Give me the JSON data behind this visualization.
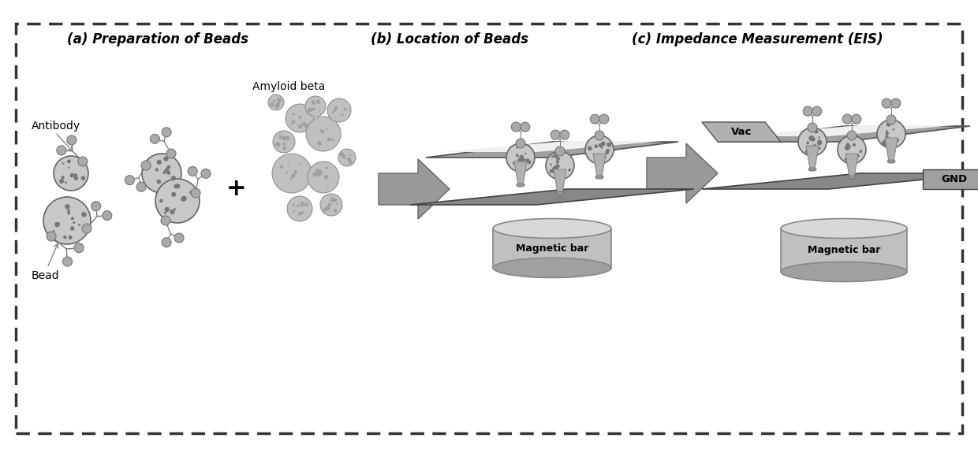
{
  "title_a": "(a) Preparation of Beads",
  "title_b": "(b) Location of Beads",
  "title_c": "(c) Impedance Measurement (EIS)",
  "label_antibody": "Antibody",
  "label_bead": "Bead",
  "label_amyloid": "Amyloid beta",
  "label_magnetic_bar": "Magnetic bar",
  "label_vac": "Vac",
  "label_gnd": "GND",
  "label_plus": "+",
  "bg_color": "#ffffff",
  "border_color": "#333333",
  "plate_upper_color": "#a0a0a0",
  "plate_lower_color": "#888888",
  "plate_white_color": "#e8e8e8",
  "mag_body_color": "#c0c0c0",
  "mag_top_color": "#d8d8d8",
  "mag_bot_color": "#a0a0a0",
  "mag_edge_color": "#888888",
  "arrow_fill": "#999999",
  "arrow_edge": "#666666",
  "bead_color": "#c8c8c8",
  "bead_edge": "#666666",
  "bead_spot": "#777777",
  "antibody_color": "#777777",
  "blob_color": "#c0c0c0",
  "blob_edge": "#888888",
  "text_color": "#000000",
  "vac_box_color": "#b0b0b0",
  "gnd_box_color": "#a0a0a0",
  "fig_width": 12.4,
  "fig_height": 5.7,
  "dpi": 100
}
